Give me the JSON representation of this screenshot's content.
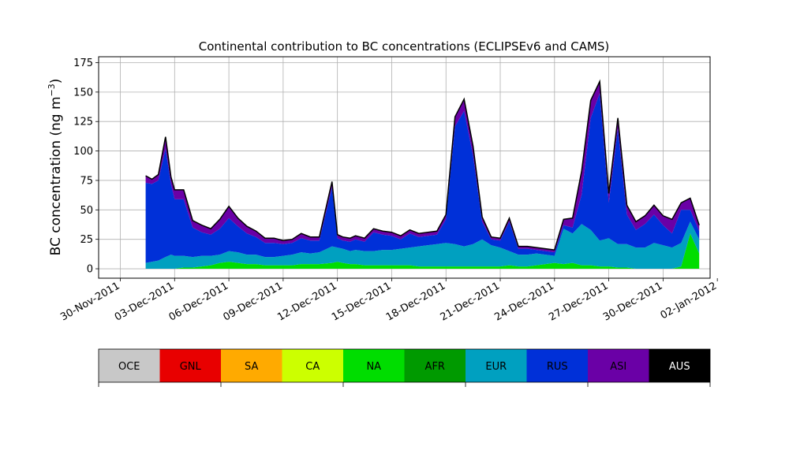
{
  "chart_data": {
    "type": "area",
    "title": "Continental contribution to BC concentrations (ECLIPSEv6 and CAMS)",
    "xlabel": "",
    "ylabel_main": "BC concentration (ng m",
    "ylabel_exp": "−3",
    "ylabel_close": ")",
    "ylim": [
      -8,
      180
    ],
    "yticks": [
      0,
      25,
      50,
      75,
      100,
      125,
      150,
      175
    ],
    "xlim_day": [
      -1.2,
      32.6
    ],
    "xticks": [
      {
        "day": 0,
        "label": "30-Nov-2011"
      },
      {
        "day": 3,
        "label": "03-Dec-2011"
      },
      {
        "day": 6,
        "label": "06-Dec-2011"
      },
      {
        "day": 9,
        "label": "09-Dec-2011"
      },
      {
        "day": 12,
        "label": "12-Dec-2011"
      },
      {
        "day": 15,
        "label": "15-Dec-2011"
      },
      {
        "day": 18,
        "label": "18-Dec-2011"
      },
      {
        "day": 21,
        "label": "21-Dec-2011"
      },
      {
        "day": 24,
        "label": "24-Dec-2011"
      },
      {
        "day": 27,
        "label": "27-Dec-2011"
      },
      {
        "day": 30,
        "label": "30-Dec-2011"
      },
      {
        "day": 33,
        "label": "02-Jan-2012"
      }
    ],
    "grid": true,
    "day_values": [
      1.4,
      1.75,
      2.1,
      2.5,
      2.8,
      3.0,
      3.5,
      4.0,
      4.5,
      5.0,
      5.5,
      6.0,
      6.5,
      7.0,
      7.5,
      8.0,
      8.5,
      9.0,
      9.5,
      10.0,
      10.5,
      11.0,
      11.7,
      12.0,
      12.3,
      12.7,
      13.0,
      13.5,
      14.0,
      14.5,
      15.0,
      15.5,
      16.0,
      16.5,
      17.0,
      17.5,
      18.0,
      18.5,
      19.0,
      19.5,
      20.0,
      20.5,
      21.0,
      21.5,
      22.0,
      22.5,
      23.0,
      23.5,
      24.0,
      24.5,
      25.0,
      25.5,
      26.0,
      26.5,
      27.0,
      27.5,
      28.0,
      28.5,
      29.0,
      29.5,
      30.0,
      30.5,
      31.0,
      31.5,
      32.0
    ],
    "series": [
      {
        "name": "NA",
        "color": "#00dd00",
        "values": [
          0,
          0,
          0,
          0,
          0,
          0,
          1,
          1,
          2,
          3,
          5,
          6,
          5,
          4,
          4,
          3,
          3,
          3,
          3,
          4,
          4,
          4,
          5,
          6,
          5,
          4,
          4,
          3,
          3,
          3,
          3,
          3,
          3,
          2,
          2,
          2,
          2,
          2,
          2,
          2,
          2,
          2,
          2,
          3,
          2,
          2,
          3,
          4,
          5,
          4,
          5,
          3,
          3,
          2,
          2,
          1,
          1,
          0,
          0,
          0,
          0,
          0,
          2,
          30,
          13
        ]
      },
      {
        "name": "EUR",
        "color": "#00a0c0",
        "values": [
          5,
          6,
          7,
          10,
          12,
          11,
          10,
          9,
          9,
          8,
          7,
          9,
          9,
          8,
          8,
          7,
          7,
          8,
          9,
          10,
          9,
          10,
          14,
          12,
          12,
          11,
          12,
          12,
          12,
          13,
          13,
          14,
          15,
          17,
          18,
          19,
          20,
          19,
          17,
          19,
          23,
          18,
          16,
          12,
          10,
          10,
          10,
          8,
          6,
          30,
          25,
          35,
          30,
          22,
          24,
          20,
          20,
          18,
          18,
          22,
          20,
          18,
          20,
          10,
          12
        ]
      },
      {
        "name": "RUS",
        "color": "#0030d8",
        "values": [
          68,
          66,
          68,
          92,
          60,
          48,
          48,
          25,
          20,
          18,
          22,
          28,
          22,
          18,
          15,
          12,
          12,
          10,
          10,
          12,
          11,
          10,
          50,
          8,
          7,
          8,
          9,
          8,
          16,
          13,
          12,
          8,
          12,
          8,
          8,
          8,
          20,
          100,
          115,
          75,
          15,
          5,
          6,
          25,
          5,
          5,
          3,
          3,
          3,
          3,
          5,
          25,
          95,
          125,
          30,
          98,
          25,
          15,
          20,
          24,
          17,
          12,
          28,
          10,
          7
        ]
      },
      {
        "name": "ASI",
        "color": "#6a00a6",
        "values": [
          6,
          4,
          5,
          10,
          6,
          8,
          8,
          6,
          6,
          5,
          8,
          10,
          7,
          6,
          5,
          4,
          4,
          3,
          3,
          4,
          3,
          3,
          5,
          3,
          3,
          3,
          3,
          3,
          3,
          3,
          3,
          3,
          3,
          3,
          3,
          3,
          4,
          8,
          10,
          8,
          4,
          2,
          2,
          3,
          2,
          2,
          2,
          2,
          2,
          5,
          8,
          20,
          15,
          10,
          8,
          9,
          8,
          7,
          7,
          8,
          8,
          12,
          6,
          10,
          5
        ]
      }
    ],
    "legend": [
      "OCE",
      "GNL",
      "SA",
      "CA",
      "NA",
      "AFR",
      "EUR",
      "RUS",
      "ASI",
      "AUS"
    ],
    "legend_colors": [
      "#c8c8c8",
      "#e80000",
      "#ffaa00",
      "#ccff00",
      "#00dd00",
      "#009a00",
      "#00a0c0",
      "#0030d8",
      "#6a00a6",
      "#000000"
    ],
    "legend_placement": "bottom"
  }
}
